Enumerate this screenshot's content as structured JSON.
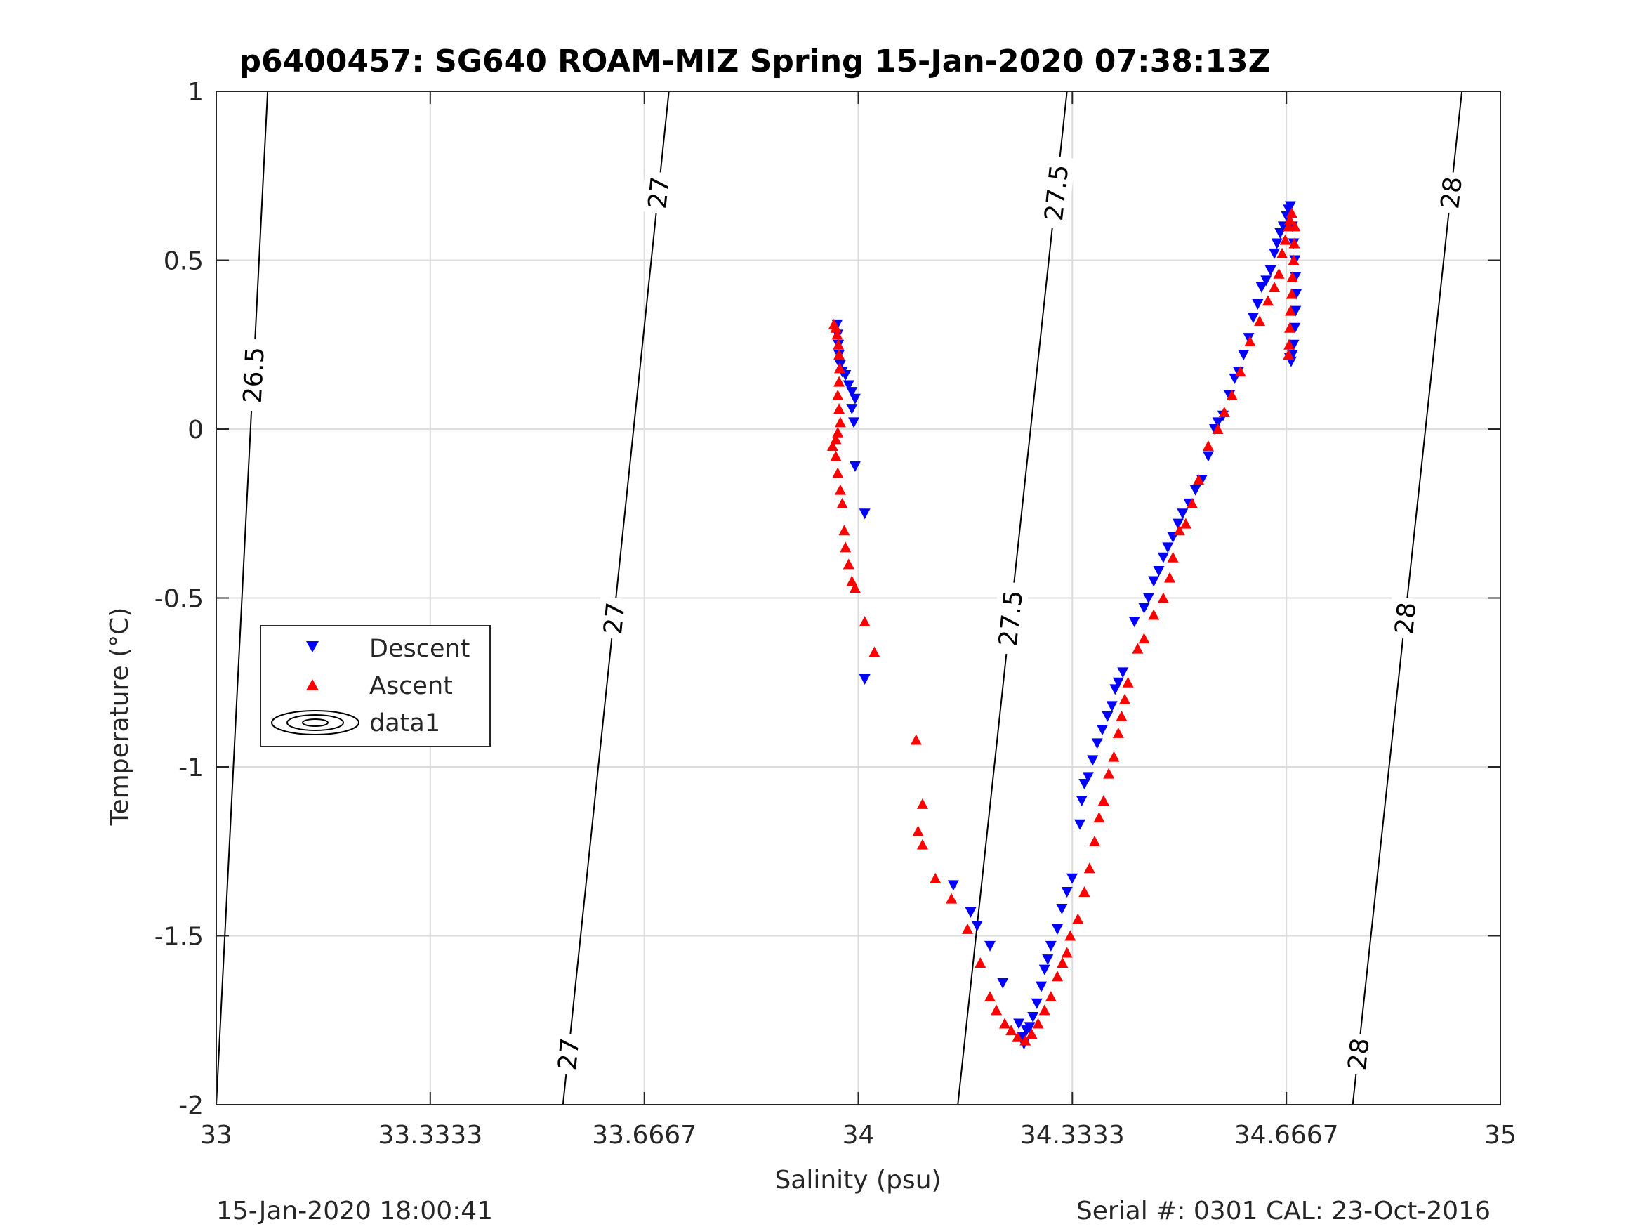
{
  "chart_data": {
    "type": "scatter",
    "title": "p6400457: SG640 ROAM-MIZ Spring 15-Jan-2020 07:38:13Z",
    "xlabel": "Salinity (psu)",
    "ylabel": "Temperature (°C)",
    "xlim": [
      33,
      35
    ],
    "ylim": [
      -2,
      1
    ],
    "xticks": [
      33,
      33.3333,
      33.6667,
      34,
      34.3333,
      34.6667,
      35
    ],
    "xtick_labels": [
      "33",
      "33.3333",
      "33.6667",
      "34",
      "34.3333",
      "34.6667",
      "35"
    ],
    "yticks": [
      -2,
      -1.5,
      -1,
      -0.5,
      0,
      0.5,
      1
    ],
    "ytick_labels": [
      "-2",
      "-1.5",
      "-1",
      "-0.5",
      "0",
      "0.5",
      "1"
    ],
    "grid": true,
    "legend_position": "middle-left",
    "series": [
      {
        "name": "Descent",
        "marker": "triangle-down",
        "color": "#0000ff",
        "points": [
          [
            33.967,
            0.31
          ],
          [
            33.968,
            0.28
          ],
          [
            33.969,
            0.25
          ],
          [
            33.97,
            0.22
          ],
          [
            33.972,
            0.19
          ],
          [
            33.975,
            0.17
          ],
          [
            33.98,
            0.16
          ],
          [
            33.985,
            0.13
          ],
          [
            33.99,
            0.11
          ],
          [
            33.995,
            0.09
          ],
          [
            33.99,
            0.06
          ],
          [
            33.993,
            0.02
          ],
          [
            33.995,
            -0.11
          ],
          [
            34.01,
            -0.25
          ],
          [
            34.01,
            -0.74
          ],
          [
            34.148,
            -1.35
          ],
          [
            34.175,
            -1.43
          ],
          [
            34.185,
            -1.47
          ],
          [
            34.205,
            -1.53
          ],
          [
            34.225,
            -1.64
          ],
          [
            34.25,
            -1.76
          ],
          [
            34.255,
            -1.8
          ],
          [
            34.258,
            -1.82
          ],
          [
            34.262,
            -1.78
          ],
          [
            34.267,
            -1.77
          ],
          [
            34.272,
            -1.74
          ],
          [
            34.278,
            -1.7
          ],
          [
            34.285,
            -1.65
          ],
          [
            34.29,
            -1.6
          ],
          [
            34.295,
            -1.57
          ],
          [
            34.3,
            -1.53
          ],
          [
            34.31,
            -1.48
          ],
          [
            34.317,
            -1.42
          ],
          [
            34.325,
            -1.37
          ],
          [
            34.333,
            -1.33
          ],
          [
            34.345,
            -1.17
          ],
          [
            34.348,
            -1.1
          ],
          [
            34.352,
            -1.05
          ],
          [
            34.358,
            -1.03
          ],
          [
            34.365,
            -0.98
          ],
          [
            34.372,
            -0.93
          ],
          [
            34.38,
            -0.89
          ],
          [
            34.388,
            -0.85
          ],
          [
            34.395,
            -0.82
          ],
          [
            34.4,
            -0.77
          ],
          [
            34.405,
            -0.75
          ],
          [
            34.412,
            -0.72
          ],
          [
            34.43,
            -0.57
          ],
          [
            34.445,
            -0.53
          ],
          [
            34.452,
            -0.5
          ],
          [
            34.46,
            -0.45
          ],
          [
            34.468,
            -0.42
          ],
          [
            34.475,
            -0.38
          ],
          [
            34.482,
            -0.35
          ],
          [
            34.49,
            -0.32
          ],
          [
            34.498,
            -0.28
          ],
          [
            34.505,
            -0.25
          ],
          [
            34.515,
            -0.22
          ],
          [
            34.525,
            -0.18
          ],
          [
            34.535,
            -0.15
          ],
          [
            34.545,
            -0.08
          ],
          [
            34.555,
            0
          ],
          [
            34.56,
            0.02
          ],
          [
            34.568,
            0.04
          ],
          [
            34.578,
            0.1
          ],
          [
            34.586,
            0.15
          ],
          [
            34.592,
            0.17
          ],
          [
            34.6,
            0.22
          ],
          [
            34.608,
            0.27
          ],
          [
            34.615,
            0.33
          ],
          [
            34.622,
            0.37
          ],
          [
            34.628,
            0.42
          ],
          [
            34.635,
            0.44
          ],
          [
            34.642,
            0.47
          ],
          [
            34.648,
            0.52
          ],
          [
            34.652,
            0.55
          ],
          [
            34.657,
            0.58
          ],
          [
            34.662,
            0.6
          ],
          [
            34.667,
            0.63
          ],
          [
            34.67,
            0.65
          ],
          [
            34.673,
            0.66
          ],
          [
            34.676,
            0.6
          ],
          [
            34.678,
            0.55
          ],
          [
            34.68,
            0.5
          ],
          [
            34.681,
            0.45
          ],
          [
            34.682,
            0.4
          ],
          [
            34.681,
            0.35
          ],
          [
            34.68,
            0.3
          ],
          [
            34.678,
            0.25
          ],
          [
            34.676,
            0.22
          ],
          [
            34.674,
            0.2
          ],
          [
            34.672,
            0.21
          ]
        ]
      },
      {
        "name": "Ascent",
        "marker": "triangle-up",
        "color": "#ff0000",
        "points": [
          [
            33.962,
            0.31
          ],
          [
            33.965,
            0.3
          ],
          [
            33.967,
            0.28
          ],
          [
            33.969,
            0.25
          ],
          [
            33.97,
            0.22
          ],
          [
            33.971,
            0.18
          ],
          [
            33.97,
            0.14
          ],
          [
            33.968,
            0.1
          ],
          [
            33.97,
            0.06
          ],
          [
            33.972,
            0.02
          ],
          [
            33.968,
            -0.01
          ],
          [
            33.965,
            -0.03
          ],
          [
            33.96,
            -0.05
          ],
          [
            33.965,
            -0.08
          ],
          [
            33.968,
            -0.13
          ],
          [
            33.972,
            -0.18
          ],
          [
            33.975,
            -0.22
          ],
          [
            33.978,
            -0.3
          ],
          [
            33.98,
            -0.35
          ],
          [
            33.985,
            -0.4
          ],
          [
            33.99,
            -0.45
          ],
          [
            33.995,
            -0.47
          ],
          [
            34.01,
            -0.57
          ],
          [
            34.025,
            -0.66
          ],
          [
            34.09,
            -0.92
          ],
          [
            34.1,
            -1.11
          ],
          [
            34.093,
            -1.19
          ],
          [
            34.1,
            -1.23
          ],
          [
            34.12,
            -1.33
          ],
          [
            34.145,
            -1.39
          ],
          [
            34.17,
            -1.48
          ],
          [
            34.19,
            -1.58
          ],
          [
            34.205,
            -1.68
          ],
          [
            34.215,
            -1.72
          ],
          [
            34.228,
            -1.76
          ],
          [
            34.238,
            -1.78
          ],
          [
            34.248,
            -1.8
          ],
          [
            34.26,
            -1.81
          ],
          [
            34.27,
            -1.79
          ],
          [
            34.28,
            -1.76
          ],
          [
            34.29,
            -1.72
          ],
          [
            34.3,
            -1.68
          ],
          [
            34.31,
            -1.62
          ],
          [
            34.318,
            -1.58
          ],
          [
            34.325,
            -1.55
          ],
          [
            34.33,
            -1.5
          ],
          [
            34.342,
            -1.45
          ],
          [
            34.352,
            -1.37
          ],
          [
            34.36,
            -1.3
          ],
          [
            34.368,
            -1.22
          ],
          [
            34.375,
            -1.15
          ],
          [
            34.382,
            -1.1
          ],
          [
            34.39,
            -1.02
          ],
          [
            34.398,
            -0.97
          ],
          [
            34.405,
            -0.9
          ],
          [
            34.41,
            -0.85
          ],
          [
            34.415,
            -0.8
          ],
          [
            34.42,
            -0.75
          ],
          [
            34.435,
            -0.65
          ],
          [
            34.445,
            -0.62
          ],
          [
            34.46,
            -0.55
          ],
          [
            34.475,
            -0.5
          ],
          [
            34.485,
            -0.44
          ],
          [
            34.49,
            -0.38
          ],
          [
            34.5,
            -0.3
          ],
          [
            34.51,
            -0.28
          ],
          [
            34.52,
            -0.22
          ],
          [
            34.53,
            -0.15
          ],
          [
            34.545,
            -0.05
          ],
          [
            34.56,
            0
          ],
          [
            34.57,
            0.05
          ],
          [
            34.582,
            0.1
          ],
          [
            34.595,
            0.17
          ],
          [
            34.61,
            0.26
          ],
          [
            34.625,
            0.32
          ],
          [
            34.638,
            0.38
          ],
          [
            34.648,
            0.42
          ],
          [
            34.655,
            0.46
          ],
          [
            34.66,
            0.52
          ],
          [
            34.665,
            0.56
          ],
          [
            34.67,
            0.6
          ],
          [
            34.672,
            0.62
          ],
          [
            34.675,
            0.64
          ],
          [
            34.68,
            0.6
          ],
          [
            34.679,
            0.55
          ],
          [
            34.678,
            0.5
          ],
          [
            34.676,
            0.45
          ],
          [
            34.675,
            0.4
          ],
          [
            34.673,
            0.35
          ],
          [
            34.672,
            0.3
          ],
          [
            34.671,
            0.25
          ],
          [
            34.67,
            0.22
          ]
        ]
      }
    ],
    "density_contours": [
      {
        "level": "26.5",
        "s_bottom": 33.0,
        "s_top": 33.08,
        "labels": [
          {
            "S": 33.025,
            "T": 0.16,
            "text": "26.5"
          }
        ]
      },
      {
        "level": "27",
        "s_bottom": 33.54,
        "s_top": 33.705,
        "labels": [
          {
            "S": 33.68,
            "T": 0.7,
            "text": "27"
          },
          {
            "S": 33.6,
            "T": -0.56,
            "text": "27"
          },
          {
            "S": 33.55,
            "T": -1.85,
            "text": "27"
          }
        ]
      },
      {
        "level": "27.5",
        "s_bottom": 34.155,
        "s_top": 34.325,
        "labels": [
          {
            "S": 34.3,
            "T": 0.7,
            "text": "27.5"
          },
          {
            "S": 34.22,
            "T": -0.56,
            "text": "27.5"
          }
        ]
      },
      {
        "level": "28",
        "s_bottom": 34.77,
        "s_top": 34.94,
        "labels": [
          {
            "S": 34.92,
            "T": 0.7,
            "text": "28"
          },
          {
            "S": 34.84,
            "T": -0.56,
            "text": "28"
          },
          {
            "S": 34.785,
            "T": -1.85,
            "text": "28"
          }
        ]
      }
    ],
    "legend": {
      "entries": [
        "Descent",
        "Ascent",
        "data1"
      ]
    },
    "footer_left": "15-Jan-2020 18:00:41",
    "footer_right": "Serial #: 0301  CAL: 23-Oct-2016"
  }
}
